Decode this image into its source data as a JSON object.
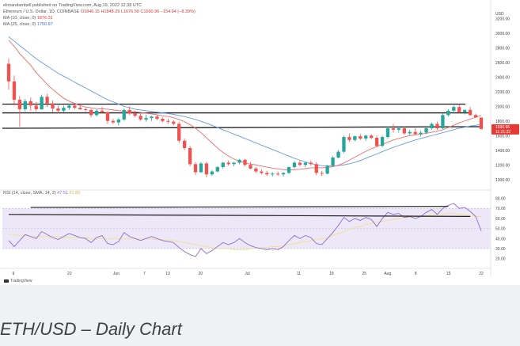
{
  "header": {
    "attribution": "elimandambell published on TradingView.com, Aug 19, 2022 12:38 UTC",
    "symbol": "Ethereum / U.S. Dollar, 1D, COINBASE",
    "ohlc": "O1846.15 H1848.29 L1676.50 C1690.96 −154.94 (−8.39%)",
    "ma10": "MA (10, close, 0)",
    "ma10_value": "1876.31",
    "ma25": "MA (25, close, 0)",
    "ma25_value": "1750.87",
    "rsi_label": "RSI (14, close, SMA, 14, 2)",
    "rsi_value": "47.51",
    "rsi_sma_value": "61.89"
  },
  "footer": {
    "tradingview": "TradingView",
    "caption": "ETH/USD – Daily Chart"
  },
  "colors": {
    "up": "#26a69a",
    "down": "#ef5350",
    "ma10": "#f06c6c",
    "ma25": "#6a9ae8",
    "rsi": "#8c6ad4",
    "rsi_sma": "#f0e08a",
    "rsi_band": "#ede8f8",
    "level": "#1a1a1a",
    "price_tag": "#e53935"
  },
  "chart_data": [
    {
      "type": "candlestick",
      "title": "Ethereum / U.S. Dollar, 1D, COINBASE",
      "currency": "USD",
      "x_tick_labels": [
        "9",
        "22",
        "Jun",
        "7",
        "13",
        "20",
        "Jul",
        "11",
        "18",
        "25",
        "Aug",
        "8",
        "15",
        "22"
      ],
      "y_ticks": [
        1000,
        1200,
        1400,
        1600,
        1800,
        2000,
        2200,
        2400,
        2600,
        2800,
        3000,
        3200
      ],
      "ylim": [
        900,
        3300
      ],
      "last_price_labels": [
        "1690.96",
        "11:21:22"
      ],
      "ohlc": [
        [
          2580,
          2650,
          2230,
          2340
        ],
        [
          2340,
          2420,
          2010,
          2090
        ],
        [
          2090,
          2140,
          1720,
          1960
        ],
        [
          1960,
          2100,
          1930,
          2070
        ],
        [
          2070,
          2120,
          1940,
          2010
        ],
        [
          2010,
          2060,
          1930,
          1960
        ],
        [
          1960,
          2160,
          1950,
          2130
        ],
        [
          2130,
          2170,
          1990,
          2040
        ],
        [
          2040,
          2080,
          1920,
          1970
        ],
        [
          1970,
          2010,
          1910,
          1940
        ],
        [
          1940,
          2010,
          1920,
          1980
        ],
        [
          1980,
          2040,
          1950,
          2010
        ],
        [
          2010,
          2030,
          1960,
          1980
        ],
        [
          1980,
          2010,
          1950,
          1960
        ],
        [
          1960,
          1980,
          1930,
          1950
        ],
        [
          1950,
          1970,
          1850,
          1880
        ],
        [
          1880,
          1960,
          1860,
          1940
        ],
        [
          1940,
          1990,
          1900,
          1920
        ],
        [
          1920,
          1930,
          1760,
          1800
        ],
        [
          1800,
          1830,
          1760,
          1780
        ],
        [
          1780,
          1840,
          1740,
          1820
        ],
        [
          1820,
          1970,
          1800,
          1950
        ],
        [
          1950,
          2000,
          1880,
          1900
        ],
        [
          1900,
          1940,
          1850,
          1870
        ],
        [
          1870,
          1900,
          1800,
          1820
        ],
        [
          1820,
          1880,
          1790,
          1840
        ],
        [
          1840,
          1870,
          1800,
          1860
        ],
        [
          1860,
          1880,
          1810,
          1830
        ],
        [
          1830,
          1850,
          1780,
          1800
        ],
        [
          1800,
          1830,
          1760,
          1790
        ],
        [
          1790,
          1810,
          1740,
          1760
        ],
        [
          1760,
          1790,
          1500,
          1530
        ],
        [
          1530,
          1560,
          1400,
          1430
        ],
        [
          1430,
          1460,
          1180,
          1210
        ],
        [
          1210,
          1240,
          1060,
          1100
        ],
        [
          1100,
          1240,
          1090,
          1220
        ],
        [
          1220,
          1240,
          1030,
          1070
        ],
        [
          1070,
          1130,
          1050,
          1110
        ],
        [
          1110,
          1180,
          1100,
          1170
        ],
        [
          1170,
          1240,
          1150,
          1230
        ],
        [
          1230,
          1260,
          1190,
          1210
        ],
        [
          1210,
          1240,
          1180,
          1230
        ],
        [
          1230,
          1280,
          1210,
          1270
        ],
        [
          1270,
          1280,
          1180,
          1200
        ],
        [
          1200,
          1240,
          1140,
          1150
        ],
        [
          1150,
          1170,
          1090,
          1110
        ],
        [
          1110,
          1140,
          1070,
          1090
        ],
        [
          1090,
          1120,
          1050,
          1070
        ],
        [
          1070,
          1100,
          1040,
          1080
        ],
        [
          1080,
          1110,
          1050,
          1070
        ],
        [
          1070,
          1100,
          1040,
          1090
        ],
        [
          1090,
          1180,
          1080,
          1170
        ],
        [
          1170,
          1250,
          1150,
          1230
        ],
        [
          1230,
          1260,
          1180,
          1200
        ],
        [
          1200,
          1240,
          1170,
          1230
        ],
        [
          1230,
          1260,
          1190,
          1210
        ],
        [
          1210,
          1240,
          1060,
          1090
        ],
        [
          1090,
          1120,
          1050,
          1080
        ],
        [
          1080,
          1200,
          1070,
          1190
        ],
        [
          1190,
          1320,
          1180,
          1300
        ],
        [
          1300,
          1400,
          1290,
          1380
        ],
        [
          1380,
          1600,
          1360,
          1580
        ],
        [
          1580,
          1630,
          1510,
          1540
        ],
        [
          1540,
          1600,
          1520,
          1590
        ],
        [
          1590,
          1620,
          1540,
          1560
        ],
        [
          1560,
          1610,
          1530,
          1600
        ],
        [
          1600,
          1620,
          1550,
          1570
        ],
        [
          1570,
          1600,
          1440,
          1460
        ],
        [
          1460,
          1600,
          1440,
          1580
        ],
        [
          1580,
          1720,
          1560,
          1700
        ],
        [
          1700,
          1760,
          1640,
          1680
        ],
        [
          1680,
          1730,
          1640,
          1700
        ],
        [
          1700,
          1720,
          1610,
          1630
        ],
        [
          1630,
          1680,
          1600,
          1650
        ],
        [
          1650,
          1700,
          1610,
          1620
        ],
        [
          1620,
          1670,
          1590,
          1640
        ],
        [
          1640,
          1720,
          1620,
          1700
        ],
        [
          1700,
          1780,
          1680,
          1760
        ],
        [
          1760,
          1790,
          1680,
          1700
        ],
        [
          1700,
          1900,
          1690,
          1880
        ],
        [
          1880,
          1960,
          1860,
          1940
        ],
        [
          1940,
          2010,
          1910,
          1990
        ],
        [
          1990,
          2020,
          1900,
          1920
        ],
        [
          1920,
          1960,
          1890,
          1950
        ],
        [
          1950,
          1990,
          1870,
          1880
        ],
        [
          1880,
          1900,
          1840,
          1850
        ],
        [
          1846,
          1848,
          1676,
          1691
        ]
      ],
      "ma10": [
        2900,
        2820,
        2720,
        2640,
        2560,
        2460,
        2380,
        2300,
        2230,
        2170,
        2110,
        2070,
        2040,
        2010,
        1990,
        1980,
        1970,
        1965,
        1960,
        1950,
        1940,
        1935,
        1930,
        1925,
        1915,
        1905,
        1895,
        1885,
        1870,
        1860,
        1845,
        1820,
        1790,
        1750,
        1700,
        1640,
        1570,
        1500,
        1430,
        1370,
        1320,
        1280,
        1250,
        1230,
        1210,
        1200,
        1185,
        1170,
        1155,
        1145,
        1135,
        1130,
        1135,
        1140,
        1150,
        1160,
        1160,
        1160,
        1165,
        1175,
        1195,
        1225,
        1265,
        1305,
        1345,
        1385,
        1420,
        1450,
        1480,
        1510,
        1540,
        1560,
        1580,
        1600,
        1610,
        1620,
        1630,
        1645,
        1660,
        1680,
        1710,
        1740,
        1775,
        1800,
        1825,
        1850,
        1876
      ],
      "ma25": [
        2950,
        2890,
        2830,
        2770,
        2710,
        2650,
        2600,
        2550,
        2500,
        2450,
        2410,
        2370,
        2330,
        2290,
        2250,
        2210,
        2170,
        2130,
        2090,
        2060,
        2030,
        2000,
        1980,
        1960,
        1950,
        1940,
        1930,
        1920,
        1910,
        1900,
        1890,
        1875,
        1860,
        1840,
        1820,
        1795,
        1770,
        1740,
        1710,
        1680,
        1650,
        1620,
        1590,
        1560,
        1530,
        1500,
        1470,
        1440,
        1410,
        1380,
        1350,
        1320,
        1290,
        1265,
        1240,
        1220,
        1200,
        1190,
        1185,
        1185,
        1190,
        1200,
        1215,
        1235,
        1260,
        1290,
        1320,
        1350,
        1380,
        1410,
        1440,
        1465,
        1490,
        1515,
        1540,
        1560,
        1580,
        1600,
        1620,
        1640,
        1660,
        1680,
        1700,
        1715,
        1730,
        1740,
        1751
      ],
      "horizontal_levels": [
        2030,
        1910,
        1700
      ]
    },
    {
      "type": "line",
      "title": "RSI (14, close, SMA, 14, 2)",
      "y_ticks": [
        20,
        30,
        40,
        50,
        60,
        70,
        80
      ],
      "ylim": [
        15,
        82
      ],
      "band": [
        30,
        70
      ],
      "series": [
        {
          "name": "RSI",
          "values": [
            38,
            32,
            38,
            44,
            42,
            40,
            47,
            44,
            41,
            39,
            42,
            45,
            43,
            41,
            40,
            36,
            41,
            43,
            35,
            34,
            37,
            46,
            42,
            40,
            38,
            40,
            42,
            40,
            38,
            37,
            36,
            31,
            27,
            24,
            22,
            30,
            25,
            28,
            32,
            36,
            34,
            36,
            40,
            36,
            33,
            31,
            30,
            29,
            30,
            29,
            32,
            38,
            43,
            40,
            43,
            41,
            35,
            34,
            40,
            46,
            53,
            61,
            57,
            60,
            58,
            61,
            59,
            52,
            60,
            66,
            64,
            65,
            61,
            62,
            60,
            62,
            66,
            69,
            64,
            70,
            73,
            75,
            70,
            71,
            67,
            62,
            47.51
          ]
        },
        {
          "name": "SMA",
          "values": [
            44,
            44,
            43,
            43,
            42,
            42,
            42,
            42,
            42,
            42,
            41,
            41,
            41,
            41,
            41,
            40,
            40,
            40,
            40,
            40,
            40,
            40,
            40,
            40,
            40,
            40,
            40,
            39,
            39,
            38,
            38,
            37,
            36,
            35,
            34,
            33,
            32,
            31,
            30,
            30,
            30,
            29,
            29,
            29,
            30,
            30,
            31,
            31,
            32,
            32,
            33,
            34,
            35,
            36,
            37,
            38,
            39,
            40,
            41,
            43,
            45,
            47,
            49,
            51,
            52,
            54,
            55,
            56,
            57,
            58,
            59,
            60,
            61,
            61,
            62,
            62,
            63,
            63,
            64,
            64,
            65,
            65,
            64,
            64,
            63,
            62,
            61.89
          ]
        }
      ],
      "trendlines": [
        {
          "from": [
            4,
            71
          ],
          "to": [
            80,
            72
          ]
        },
        {
          "from": [
            0,
            64
          ],
          "to": [
            84,
            62
          ]
        }
      ]
    }
  ]
}
